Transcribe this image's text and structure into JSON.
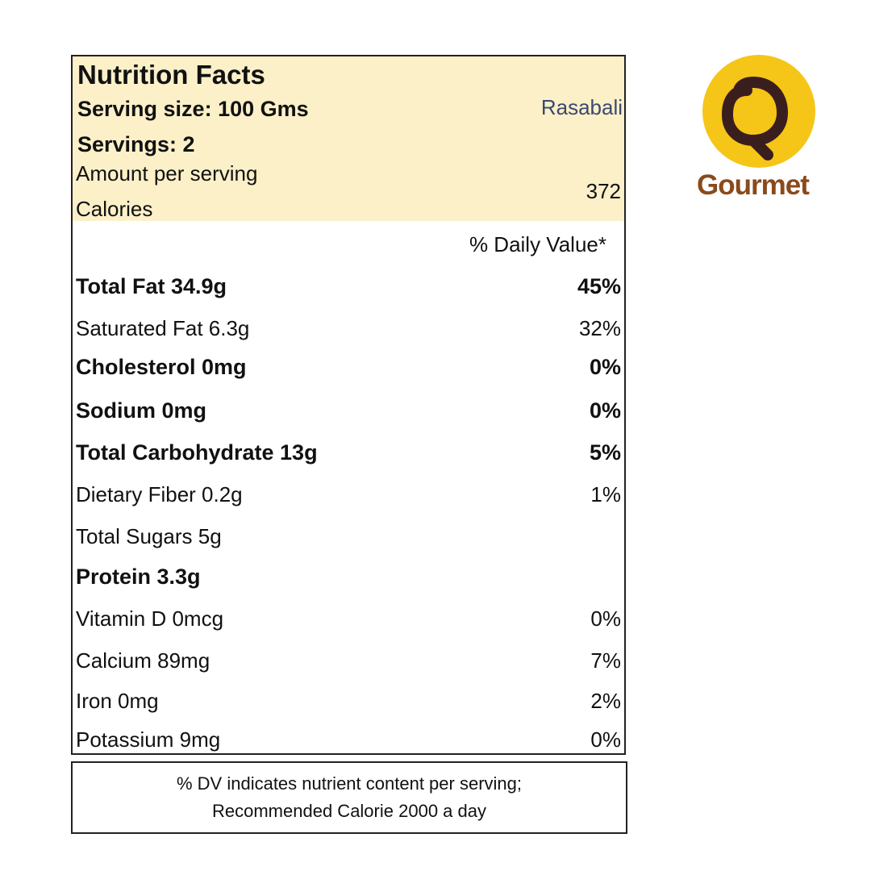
{
  "label": {
    "title": "Nutrition Facts",
    "serving_size": "Serving size: 100 Gms",
    "servings": "Servings: 2",
    "product": "Rasabali",
    "amount_per_serving": "Amount per serving",
    "calories_label": "Calories",
    "calories_value": "372",
    "dv_header": "% Daily Value*",
    "rows": [
      {
        "name": "Total Fat 34.9g",
        "dv": "45%"
      },
      {
        "name": "Saturated Fat 6.3g",
        "dv": "32%"
      },
      {
        "name": "Cholesterol 0mg",
        "dv": "0%"
      },
      {
        "name": "Sodium 0mg",
        "dv": "0%"
      },
      {
        "name": "Total Carbohydrate 13g",
        "dv": "5%"
      },
      {
        "name": "Dietary Fiber 0.2g",
        "dv": "1%"
      },
      {
        "name": "Total Sugars 5g",
        "dv": ""
      },
      {
        "name": "Protein 3.3g",
        "dv": ""
      },
      {
        "name": "Vitamin D 0mcg",
        "dv": "0%"
      },
      {
        "name": "Calcium 89mg",
        "dv": "7%"
      },
      {
        "name": "Iron 0mg",
        "dv": "2%"
      },
      {
        "name": "Potassium 9mg",
        "dv": "0%"
      }
    ],
    "footnote_line1": "% DV indicates nutrient content per serving;",
    "footnote_line2": "Recommended Calorie 2000 a day"
  },
  "brand": {
    "name": "Gourmet",
    "logo_icon": "circle-emblem-icon",
    "logo_color": "#f5c518",
    "mark_color": "#3a1e1e"
  },
  "colors": {
    "header_bg": "#fbf0c8",
    "product_text": "#3a4a70",
    "border": "#222222"
  }
}
